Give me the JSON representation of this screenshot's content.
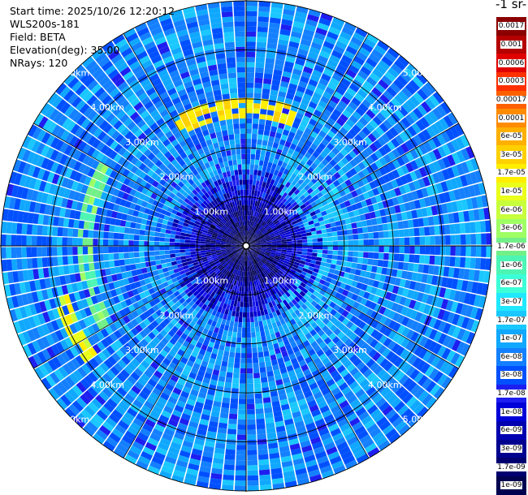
{
  "info": {
    "start_time": "Start time: 2025/10/26 12:20:12",
    "instrument": "WLS200s-181",
    "field": "Field: BETA",
    "elevation": "Elevation(deg): 35.00",
    "nrays": "NRays: 120"
  },
  "colorbar": {
    "unit_title": "-1 sr-",
    "labels": [
      "0.0017",
      "0.001",
      "0.0006",
      "0.0003",
      "0.00017",
      "0.0001",
      "6e-05",
      "3e-05",
      "1.7e-05",
      "1e-05",
      "6e-06",
      "3e-06",
      "1.7e-06",
      "1e-06",
      "6e-07",
      "3e-07",
      "1.7e-07",
      "1e-07",
      "6e-08",
      "3e-08",
      "1.7e-08",
      "1e-08",
      "6e-09",
      "3e-09",
      "1.7e-09",
      "1e-09"
    ],
    "colors": [
      "#8b0000",
      "#b40000",
      "#e00000",
      "#ff3000",
      "#ff6000",
      "#ff8c00",
      "#ffb000",
      "#ffd000",
      "#ffee00",
      "#eaff1a",
      "#c8ff3c",
      "#9eff64",
      "#72f088",
      "#4cf5b4",
      "#3cffd8",
      "#20e8ff",
      "#1ac8ff",
      "#10a8ff",
      "#1480ff",
      "#0050ff",
      "#1e1ef0",
      "#0000d8",
      "#0000b0",
      "#000090",
      "#000070",
      "#000050"
    ]
  },
  "chart_data": {
    "type": "heatmap",
    "projection": "polar PPI",
    "field": "BETA",
    "elevation_deg": 35.0,
    "n_rays": 120,
    "range_rings_km": [
      1.0,
      2.0,
      3.0,
      4.0,
      5.0
    ],
    "range_ring_labels": [
      "1.00km",
      "2.00km",
      "3.00km",
      "4.00km",
      "5.00km"
    ],
    "max_range_km": 5.0,
    "color_scale": "log",
    "value_range": [
      1e-09,
      0.0017
    ],
    "typical_value": 6e-08,
    "features": [
      {
        "description": "enhanced backscatter arc",
        "range_km": 2.8,
        "azimuth_deg": [
          330,
          20
        ],
        "approx_value": 1.7e-05
      },
      {
        "description": "enhanced backscatter arc",
        "range_km": 3.3,
        "azimuth_deg": [
          240,
          300
        ],
        "approx_value": 1.7e-06
      },
      {
        "description": "enhanced backscatter arc",
        "range_km": 3.9,
        "azimuth_deg": [
          235,
          255
        ],
        "approx_value": 1e-05
      },
      {
        "description": "low backscatter near centre",
        "range_km": [
          0.0,
          1.5
        ],
        "approx_value": 3e-09
      }
    ]
  }
}
